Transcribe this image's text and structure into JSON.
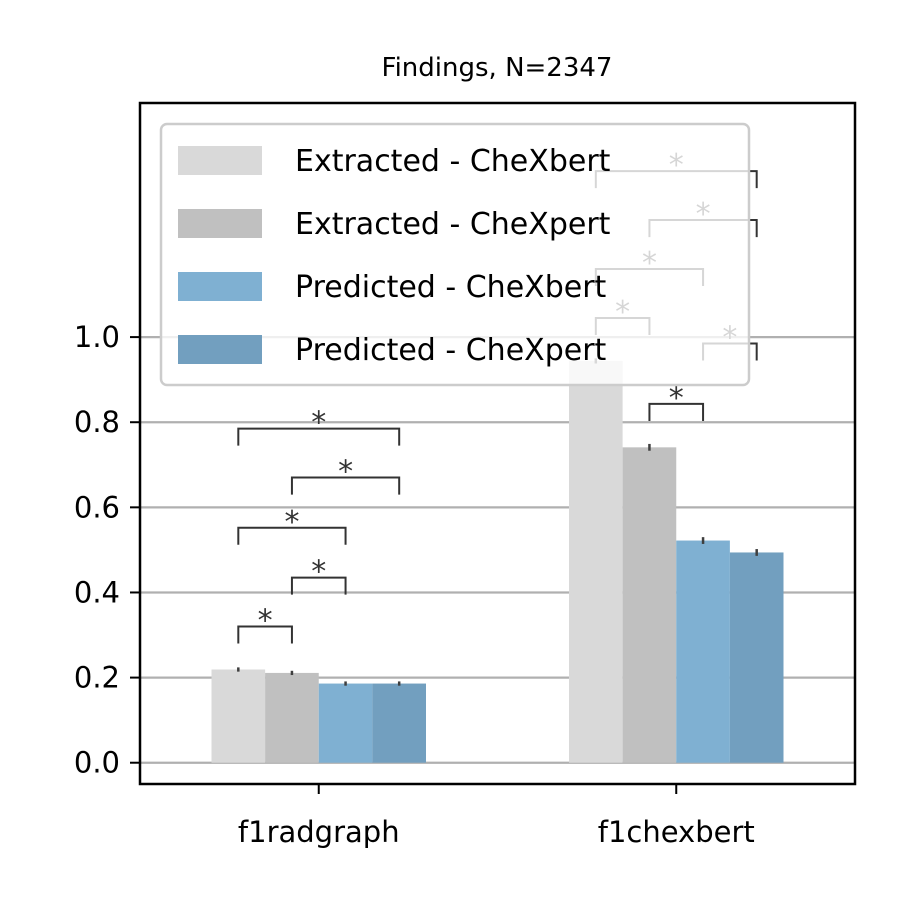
{
  "chart_data": {
    "type": "bar",
    "title": "Findings, N=2347",
    "xlabel": "",
    "ylabel": "",
    "ylim": [
      -0.05,
      1.55
    ],
    "yticks": [
      0.0,
      0.2,
      0.4,
      0.6,
      0.8,
      1.0
    ],
    "ytick_labels": [
      "0.0",
      "0.2",
      "0.4",
      "0.6",
      "0.8",
      "1.0"
    ],
    "grid": "horizontal",
    "legend_position": "upper-left",
    "categories": [
      "f1radgraph",
      "f1chexbert"
    ],
    "series": [
      {
        "name": "Extracted - CheXbert",
        "color": "#d9d9d9",
        "values": [
          0.219,
          0.944
        ],
        "errors": [
          0.005,
          0.006
        ]
      },
      {
        "name": "Extracted - CheXpert",
        "color": "#c0c0c0",
        "values": [
          0.211,
          0.741
        ],
        "errors": [
          0.005,
          0.008
        ]
      },
      {
        "name": "Predicted - CheXbert",
        "color": "#7fb0d2",
        "values": [
          0.186,
          0.522
        ],
        "errors": [
          0.005,
          0.008
        ]
      },
      {
        "name": "Predicted - CheXpert",
        "color": "#729fbf",
        "values": [
          0.186,
          0.494
        ],
        "errors": [
          0.005,
          0.008
        ]
      }
    ],
    "significance": [
      {
        "category": 0,
        "from": 0,
        "to": 1,
        "level": 0.32,
        "label": "*"
      },
      {
        "category": 0,
        "from": 1,
        "to": 2,
        "level": 0.435,
        "label": "*"
      },
      {
        "category": 0,
        "from": 0,
        "to": 2,
        "level": 0.552,
        "label": "*"
      },
      {
        "category": 0,
        "from": 1,
        "to": 3,
        "level": 0.67,
        "label": "*"
      },
      {
        "category": 0,
        "from": 0,
        "to": 3,
        "level": 0.785,
        "label": "*"
      },
      {
        "category": 1,
        "from": 1,
        "to": 2,
        "level": 0.843,
        "label": "*"
      },
      {
        "category": 1,
        "from": 0,
        "to": 1,
        "level": 1.045,
        "label": "*"
      },
      {
        "category": 1,
        "from": 2,
        "to": 3,
        "level": 0.985,
        "label": "*"
      },
      {
        "category": 1,
        "from": 0,
        "to": 2,
        "level": 1.16,
        "label": "*"
      },
      {
        "category": 1,
        "from": 1,
        "to": 3,
        "level": 1.275,
        "label": "*"
      },
      {
        "category": 1,
        "from": 0,
        "to": 3,
        "level": 1.39,
        "label": "*"
      }
    ]
  }
}
